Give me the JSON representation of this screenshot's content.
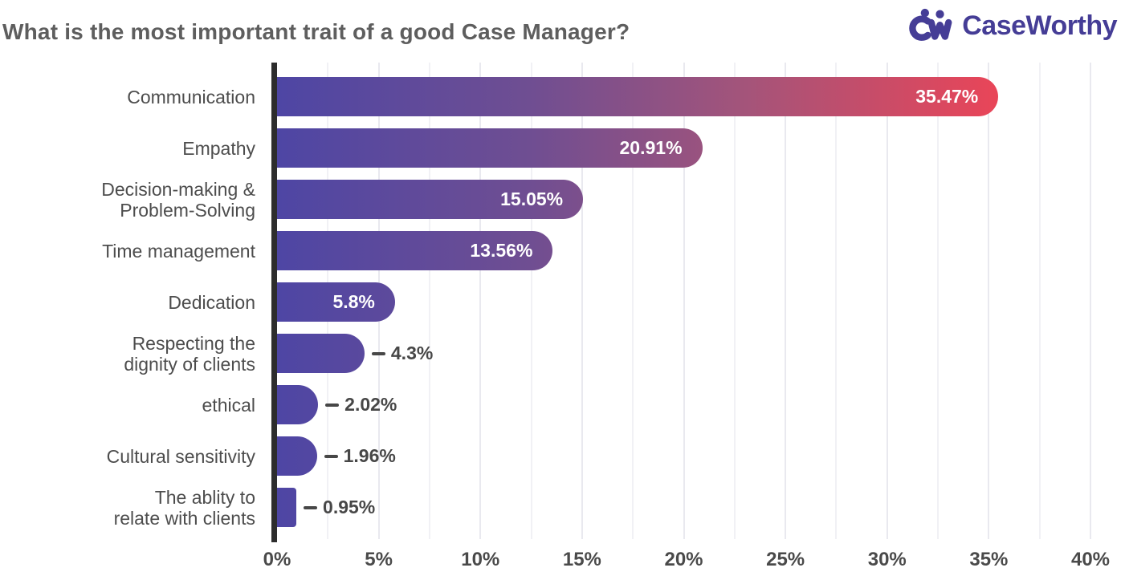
{
  "header": {
    "title": "What is the most important trait of a good Case Manager?"
  },
  "logo": {
    "text": "CaseWorthy",
    "mark_icon": "cw-people-mark-icon",
    "color": "#453D96"
  },
  "chart_data": {
    "type": "bar",
    "orientation": "horizontal",
    "title": "What is the most important trait of a good Case Manager?",
    "categories": [
      "Communication",
      "Empathy",
      "Decision-making &\nProblem-Solving",
      "Time management",
      "Dedication",
      "Respecting the\ndignity of clients",
      "ethical",
      "Cultural sensitivity",
      "The ablity to\nrelate with clients"
    ],
    "values": [
      35.47,
      20.91,
      15.05,
      13.56,
      5.8,
      4.3,
      2.02,
      1.96,
      0.95
    ],
    "value_labels": [
      "35.47%",
      "20.91%",
      "15.05%",
      "13.56%",
      "5.8%",
      "4.3%",
      "2.02%",
      "1.96%",
      "0.95%"
    ],
    "xlabel": "",
    "ylabel": "",
    "xlim": [
      0,
      40
    ],
    "x_ticks": [
      {
        "value": 0,
        "label": "0%"
      },
      {
        "value": 5,
        "label": "5%"
      },
      {
        "value": 10,
        "label": "10%"
      },
      {
        "value": 15,
        "label": "15%"
      },
      {
        "value": 20,
        "label": "20%"
      },
      {
        "value": 25,
        "label": "25%"
      },
      {
        "value": 30,
        "label": "30%"
      },
      {
        "value": 35,
        "label": "35%"
      },
      {
        "value": 40,
        "label": "40%"
      }
    ],
    "grid": true,
    "minor_grid_step_pct": 2.5,
    "legend": false,
    "inside_label_threshold": 5,
    "bar_gradient": {
      "stops": [
        {
          "offset": 0,
          "color": "#4E46A4"
        },
        {
          "offset": 0.35,
          "color": "#6F4E92"
        },
        {
          "offset": 0.65,
          "color": "#A4547A"
        },
        {
          "offset": 1,
          "color": "#E94558"
        }
      ],
      "span_pct": 35.47
    },
    "axis_color": "#2d2d2d",
    "label_color": "#4d4d4d"
  }
}
